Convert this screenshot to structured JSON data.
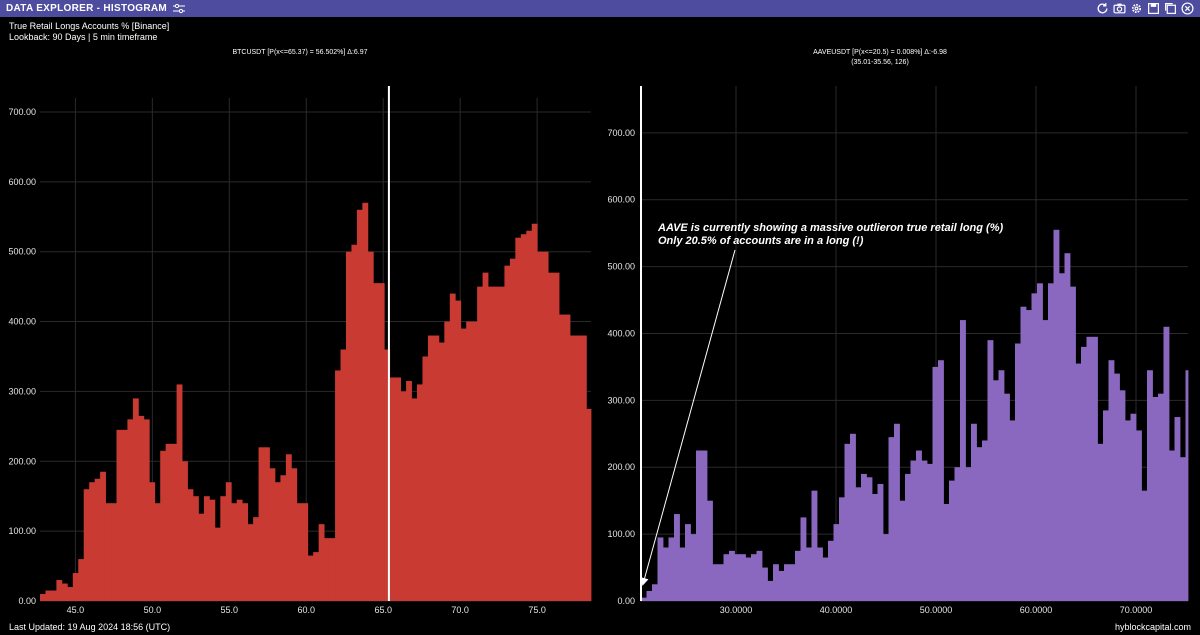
{
  "window": {
    "title": "DATA EXPLORER - HISTOGRAM",
    "icons": [
      "refresh-icon",
      "camera-icon",
      "gear-icon",
      "save-icon",
      "copy-icon",
      "close-icon"
    ]
  },
  "header": {
    "line1": "True Retail Longs Accounts % [Binance]",
    "line2": "Lookback: 90 Days | 5 min timeframe"
  },
  "footer": {
    "last_updated": "Last Updated: 19 Aug 2024 18:56 (UTC)",
    "brand": "hyblockcapital.com"
  },
  "colors": {
    "titlebar": "#4e4c9e",
    "btc_bar": "#c83a32",
    "aave_bar": "#8a68bf",
    "marker": "#ffffff",
    "grid": "#2a2a2a"
  },
  "annotation": {
    "line1": "AAVE is currently showing a massive outlieron true retail long (%)",
    "line2": "Only 20.5% of accounts are in a long (!)"
  },
  "chart_data": [
    {
      "type": "bar",
      "title": "BTCUSDT [P(x<=65.37) = 56.502%] Δ:6.97",
      "subtitle": "",
      "xlim": [
        42.7,
        78.5
      ],
      "ylim": [
        0,
        720
      ],
      "x_ticks": [
        45.0,
        50.0,
        55.0,
        60.0,
        65.0,
        70.0,
        75.0
      ],
      "x_tick_labels": [
        "45.0",
        "50.0",
        "55.0",
        "60.0",
        "65.0",
        "70.0",
        "75.0"
      ],
      "y_ticks": [
        0,
        100,
        200,
        300,
        400,
        500,
        600,
        700
      ],
      "y_tick_labels": [
        "0.00",
        "100.00",
        "200.00",
        "300.00",
        "400.00",
        "500.00",
        "600.00",
        "700.00"
      ],
      "marker_x": 65.37,
      "bin_start": 42.7,
      "bin_width": 0.355,
      "values": [
        10,
        15,
        15,
        30,
        25,
        20,
        40,
        60,
        160,
        170,
        175,
        185,
        140,
        140,
        245,
        245,
        260,
        290,
        265,
        260,
        170,
        140,
        215,
        225,
        225,
        310,
        200,
        160,
        150,
        125,
        150,
        145,
        105,
        150,
        170,
        140,
        145,
        140,
        110,
        120,
        220,
        220,
        190,
        170,
        180,
        210,
        190,
        140,
        140,
        65,
        70,
        110,
        90,
        90,
        330,
        360,
        500,
        510,
        560,
        570,
        500,
        455,
        455,
        360,
        320,
        320,
        300,
        315,
        290,
        310,
        350,
        380,
        380,
        370,
        400,
        440,
        430,
        390,
        400,
        400,
        450,
        470,
        450,
        450,
        450,
        480,
        490,
        520,
        525,
        530,
        540,
        500,
        500,
        470,
        470,
        410,
        410,
        380,
        380,
        380,
        275,
        270,
        270,
        270,
        250,
        230,
        210,
        160,
        150,
        120,
        100,
        100,
        90,
        90,
        100,
        100,
        100,
        120,
        150,
        165,
        180,
        145,
        140,
        160,
        160,
        100,
        95,
        60,
        40,
        15,
        5
      ]
    },
    {
      "type": "bar",
      "title": "AAVEUSDT [P(x<=20.5) = 0.008%] Δ:-6.98",
      "subtitle": "(35.01-35.56, 126)",
      "xlim": [
        20.4,
        75.2
      ],
      "ylim": [
        0,
        770
      ],
      "x_ticks": [
        30,
        40,
        50,
        60,
        70
      ],
      "x_tick_labels": [
        "30.0000",
        "40.0000",
        "50.0000",
        "60.0000",
        "70.0000"
      ],
      "y_ticks": [
        0,
        100,
        200,
        300,
        400,
        500,
        600,
        700
      ],
      "y_tick_labels": [
        "0.00",
        "100.00",
        "200.00",
        "300.00",
        "400.00",
        "500.00",
        "600.00",
        "700.00"
      ],
      "marker_x": 20.5,
      "bin_start": 20.5,
      "bin_width": 0.55,
      "values": [
        5,
        15,
        25,
        95,
        80,
        95,
        130,
        80,
        115,
        100,
        225,
        225,
        150,
        55,
        55,
        70,
        75,
        70,
        70,
        65,
        70,
        75,
        50,
        30,
        55,
        45,
        55,
        55,
        75,
        125,
        80,
        165,
        80,
        65,
        90,
        115,
        155,
        235,
        250,
        170,
        190,
        185,
        160,
        175,
        100,
        245,
        265,
        150,
        190,
        210,
        225,
        210,
        205,
        350,
        360,
        145,
        180,
        200,
        420,
        200,
        265,
        230,
        240,
        390,
        330,
        345,
        310,
        270,
        385,
        440,
        435,
        460,
        475,
        420,
        475,
        555,
        490,
        520,
        470,
        355,
        380,
        395,
        395,
        235,
        285,
        360,
        340,
        315,
        270,
        280,
        255,
        165,
        345,
        305,
        310,
        410,
        225,
        275,
        215,
        345,
        430,
        465,
        535,
        550,
        650,
        465,
        365,
        440,
        390,
        540,
        690,
        695,
        660,
        760,
        705,
        480,
        350,
        300,
        280,
        300,
        325,
        420,
        405,
        385,
        370,
        200,
        0
      ]
    }
  ]
}
